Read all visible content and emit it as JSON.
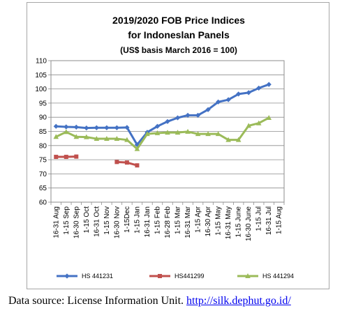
{
  "chart_data": {
    "type": "line",
    "title_lines": [
      "2019/2020 FOB Price Indices",
      "for Indoneslan Panels",
      "(US$ basis March 2016 = 100)"
    ],
    "categories": [
      "16-31 Aug",
      "1-15 Sep",
      "16-30 Sep",
      "1-15 Oct",
      "16-31 Oct",
      "1-15 Nov",
      "16-30 Nov",
      "1-15Dec",
      "1-15 Jan",
      "16-31 Jan",
      "1-15 Feb",
      "16-28 Feb",
      "1-15 Mar",
      "16-31 Mar",
      "1-15 Apr",
      "16-30 Apr",
      "1-15 May",
      "16-31 May",
      "1-15 June",
      "16-30 June",
      "1-15 Jul",
      "16-31 Jul",
      "1-15 Aug"
    ],
    "ylim": [
      60,
      110
    ],
    "yticks": [
      60,
      65,
      70,
      75,
      80,
      85,
      90,
      95,
      100,
      105,
      110
    ],
    "grid": true,
    "legend_position": "bottom",
    "series": [
      {
        "name": "HS 441231",
        "color": "#4472c4",
        "marker": "diamond",
        "values": [
          86.8,
          86.6,
          86.5,
          86.2,
          86.3,
          86.3,
          86.3,
          86.4,
          80.3,
          84.7,
          86.8,
          88.5,
          89.8,
          90.7,
          90.7,
          92.7,
          95.4,
          96.2,
          98.2,
          98.7,
          100.3,
          101.6,
          null
        ]
      },
      {
        "name": "HS441299",
        "color": "#c0504d",
        "marker": "square",
        "values": [
          76.0,
          76.0,
          76.1,
          null,
          null,
          null,
          74.2,
          74.0,
          73.0,
          null,
          null,
          null,
          null,
          null,
          null,
          null,
          null,
          null,
          null,
          null,
          null,
          null,
          null
        ]
      },
      {
        "name": "HS 441294",
        "color": "#9bbb59",
        "marker": "triangle",
        "values": [
          83.1,
          84.8,
          83.1,
          83.0,
          82.4,
          82.4,
          82.4,
          82.0,
          78.8,
          84.1,
          84.4,
          84.6,
          84.6,
          84.9,
          84.1,
          84.1,
          84.1,
          82.0,
          82.0,
          87.0,
          87.9,
          89.8,
          null
        ]
      }
    ]
  },
  "caption": {
    "prefix": "Data source: License Information Unit. ",
    "link": "http://silk.dephut.go.id/"
  }
}
